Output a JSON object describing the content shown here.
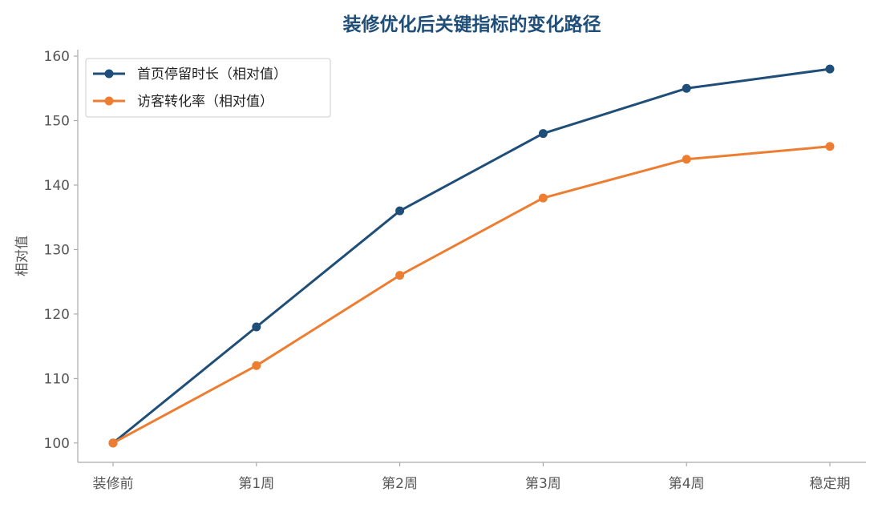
{
  "chart_data": {
    "type": "line",
    "title": "装修优化后关键指标的变化路径",
    "xlabel": "",
    "ylabel": "相对值",
    "categories": [
      "装修前",
      "第1周",
      "第2周",
      "第3周",
      "第4周",
      "稳定期"
    ],
    "ylim": [
      97,
      161
    ],
    "yticks": [
      100,
      110,
      120,
      130,
      140,
      150,
      160
    ],
    "grid": false,
    "legend_position": "top-left",
    "series": [
      {
        "name": "首页停留时长（相对值）",
        "values": [
          100,
          118,
          136,
          148,
          155,
          158
        ],
        "color": "#1f4e79"
      },
      {
        "name": "访客转化率（相对值）",
        "values": [
          100,
          112,
          126,
          138,
          144,
          146
        ],
        "color": "#ed7d31"
      }
    ],
    "colors": {
      "title": "#1f4e79",
      "axis": "#aaaaaa",
      "legend_border": "#cccccc"
    }
  }
}
